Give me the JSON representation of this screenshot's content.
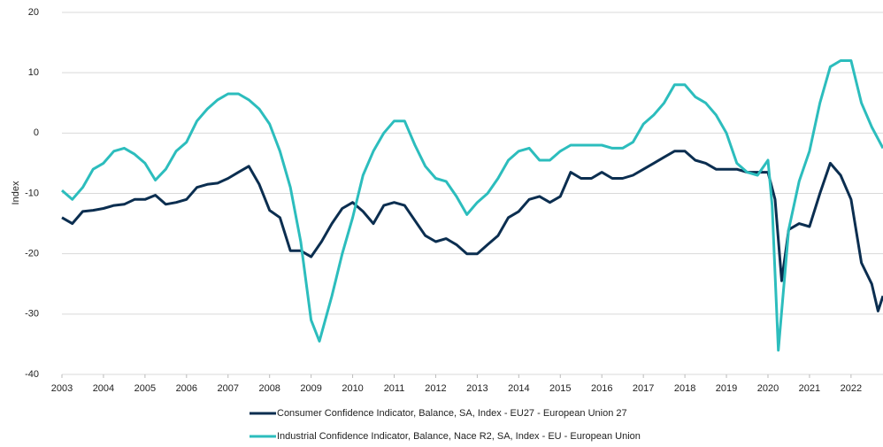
{
  "chart_data": {
    "type": "line",
    "y_label": "Index",
    "xlim": [
      2003,
      2022.77
    ],
    "xticks": [
      2003,
      2004,
      2005,
      2006,
      2007,
      2008,
      2009,
      2010,
      2011,
      2012,
      2013,
      2014,
      2015,
      2016,
      2017,
      2018,
      2019,
      2020,
      2021,
      2022
    ],
    "ylim": [
      -40,
      20
    ],
    "yticks": [
      -40,
      -30,
      -20,
      -10,
      0,
      10,
      20
    ],
    "grid": true,
    "legend": "bottom",
    "series": [
      {
        "name": "Consumer Confidence Indicator, Balance, SA, Index - EU27 - European Union 27",
        "color": "#0b2e50",
        "x": [
          2003,
          2003.25,
          2003.5,
          2003.75,
          2004,
          2004.25,
          2004.5,
          2004.75,
          2005,
          2005.25,
          2005.5,
          2005.75,
          2006,
          2006.25,
          2006.5,
          2006.75,
          2007,
          2007.25,
          2007.5,
          2007.75,
          2008,
          2008.25,
          2008.5,
          2008.75,
          2009,
          2009.25,
          2009.5,
          2009.75,
          2010,
          2010.25,
          2010.5,
          2010.75,
          2011,
          2011.25,
          2011.5,
          2011.75,
          2012,
          2012.25,
          2012.5,
          2012.75,
          2013,
          2013.25,
          2013.5,
          2013.75,
          2014,
          2014.25,
          2014.5,
          2014.75,
          2015,
          2015.25,
          2015.5,
          2015.75,
          2016,
          2016.25,
          2016.5,
          2016.75,
          2017,
          2017.25,
          2017.5,
          2017.75,
          2018,
          2018.25,
          2018.5,
          2018.75,
          2019,
          2019.25,
          2019.5,
          2019.75,
          2020,
          2020.17,
          2020.33,
          2020.5,
          2020.75,
          2021,
          2021.25,
          2021.5,
          2021.75,
          2022,
          2022.25,
          2022.5,
          2022.65,
          2022.77
        ],
        "values": [
          -14,
          -15,
          -13,
          -12.8,
          -12.5,
          -12,
          -11.8,
          -11,
          -11,
          -10.3,
          -11.8,
          -11.5,
          -11,
          -9,
          -8.5,
          -8.3,
          -7.5,
          -6.5,
          -5.5,
          -8.5,
          -12.8,
          -14,
          -19.5,
          -19.5,
          -20.5,
          -18,
          -15,
          -12.5,
          -11.5,
          -13,
          -15,
          -12,
          -11.5,
          -12,
          -14.5,
          -17,
          -18,
          -17.5,
          -18.5,
          -20,
          -20,
          -18.5,
          -17,
          -14,
          -13,
          -11,
          -10.5,
          -11.5,
          -10.5,
          -6.5,
          -7.5,
          -7.5,
          -6.5,
          -7.5,
          -7.5,
          -7,
          -6,
          -5,
          -4,
          -3,
          -3,
          -4.5,
          -5,
          -6,
          -6,
          -6,
          -6.5,
          -6.5,
          -6.5,
          -11,
          -24.5,
          -16,
          -15,
          -15.5,
          -10,
          -5,
          -7,
          -11,
          -21.5,
          -25,
          -29.5,
          -27
        ]
      },
      {
        "name": "Industrial Confidence Indicator, Balance, Nace R2, SA, Index - EU - European Union",
        "color": "#2cbdbd",
        "x": [
          2003,
          2003.25,
          2003.5,
          2003.75,
          2004,
          2004.25,
          2004.5,
          2004.75,
          2005,
          2005.25,
          2005.5,
          2005.75,
          2006,
          2006.25,
          2006.5,
          2006.75,
          2007,
          2007.25,
          2007.5,
          2007.75,
          2008,
          2008.25,
          2008.5,
          2008.75,
          2009,
          2009.2,
          2009.5,
          2009.75,
          2010,
          2010.25,
          2010.5,
          2010.75,
          2011,
          2011.25,
          2011.5,
          2011.75,
          2012,
          2012.25,
          2012.5,
          2012.75,
          2013,
          2013.25,
          2013.5,
          2013.75,
          2014,
          2014.25,
          2014.5,
          2014.75,
          2015,
          2015.25,
          2015.5,
          2015.75,
          2016,
          2016.25,
          2016.5,
          2016.75,
          2017,
          2017.25,
          2017.5,
          2017.75,
          2018,
          2018.25,
          2018.5,
          2018.75,
          2019,
          2019.25,
          2019.5,
          2019.75,
          2020,
          2020.1,
          2020.25,
          2020.5,
          2020.75,
          2021,
          2021.25,
          2021.5,
          2021.75,
          2022,
          2022.25,
          2022.5,
          2022.77
        ],
        "values": [
          -9.5,
          -11,
          -9,
          -6,
          -5,
          -3,
          -2.5,
          -3.5,
          -5,
          -7.8,
          -6,
          -3,
          -1.5,
          2,
          4,
          5.5,
          6.5,
          6.5,
          5.5,
          4,
          1.5,
          -3,
          -9,
          -18,
          -31,
          -34.5,
          -27,
          -20,
          -14,
          -7,
          -3,
          0,
          2,
          2,
          -2,
          -5.5,
          -7.5,
          -8,
          -10.5,
          -13.5,
          -11.5,
          -10,
          -7.5,
          -4.5,
          -3,
          -2.5,
          -4.5,
          -4.5,
          -3,
          -2,
          -2,
          -2,
          -2,
          -2.5,
          -2.5,
          -1.5,
          1.5,
          3,
          5,
          8,
          8,
          6,
          5,
          3,
          0,
          -5,
          -6.5,
          -7,
          -4.5,
          -12,
          -36,
          -16,
          -8,
          -3,
          5,
          11,
          12,
          12,
          5,
          1,
          -2.5
        ]
      }
    ]
  }
}
